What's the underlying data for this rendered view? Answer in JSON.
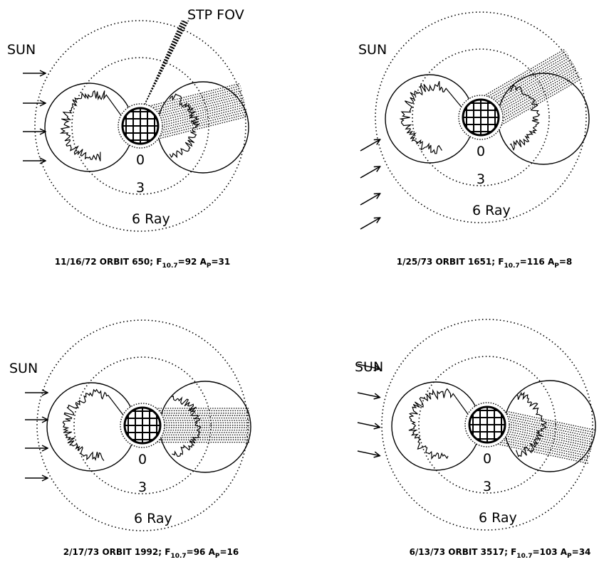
{
  "panels": [
    {
      "sun": "SUN",
      "fov": "STP FOV",
      "inner": "0",
      "middle": "3",
      "outer": "6 Ray",
      "caption": {
        "prefix": "11/16/72 ORBIT 650; F",
        "sub1": "10.7",
        "mid": "=92 A",
        "sub2": "P",
        "suffix": "=31"
      }
    },
    {
      "sun": "SUN",
      "inner": "0",
      "middle": "3",
      "outer": "6 Ray",
      "caption": {
        "prefix": "1/25/73 ORBIT 1651; F",
        "sub1": "10.7",
        "mid": "=116 A",
        "sub2": "P",
        "suffix": "=8"
      }
    },
    {
      "sun": "SUN",
      "inner": "0",
      "middle": "3",
      "outer": "6 Ray",
      "caption": {
        "prefix": "2/17/73 ORBIT 1992; F",
        "sub1": "10.7",
        "mid": "=96 A",
        "sub2": "P",
        "suffix": "=16"
      }
    },
    {
      "sun": "SUN",
      "inner": "0",
      "middle": "3",
      "outer": "6 Ray",
      "caption": {
        "prefix": "6/13/73 ORBIT 3517; F",
        "sub1": "10.7",
        "mid": "=103 A",
        "sub2": "P",
        "suffix": "=34"
      }
    }
  ]
}
